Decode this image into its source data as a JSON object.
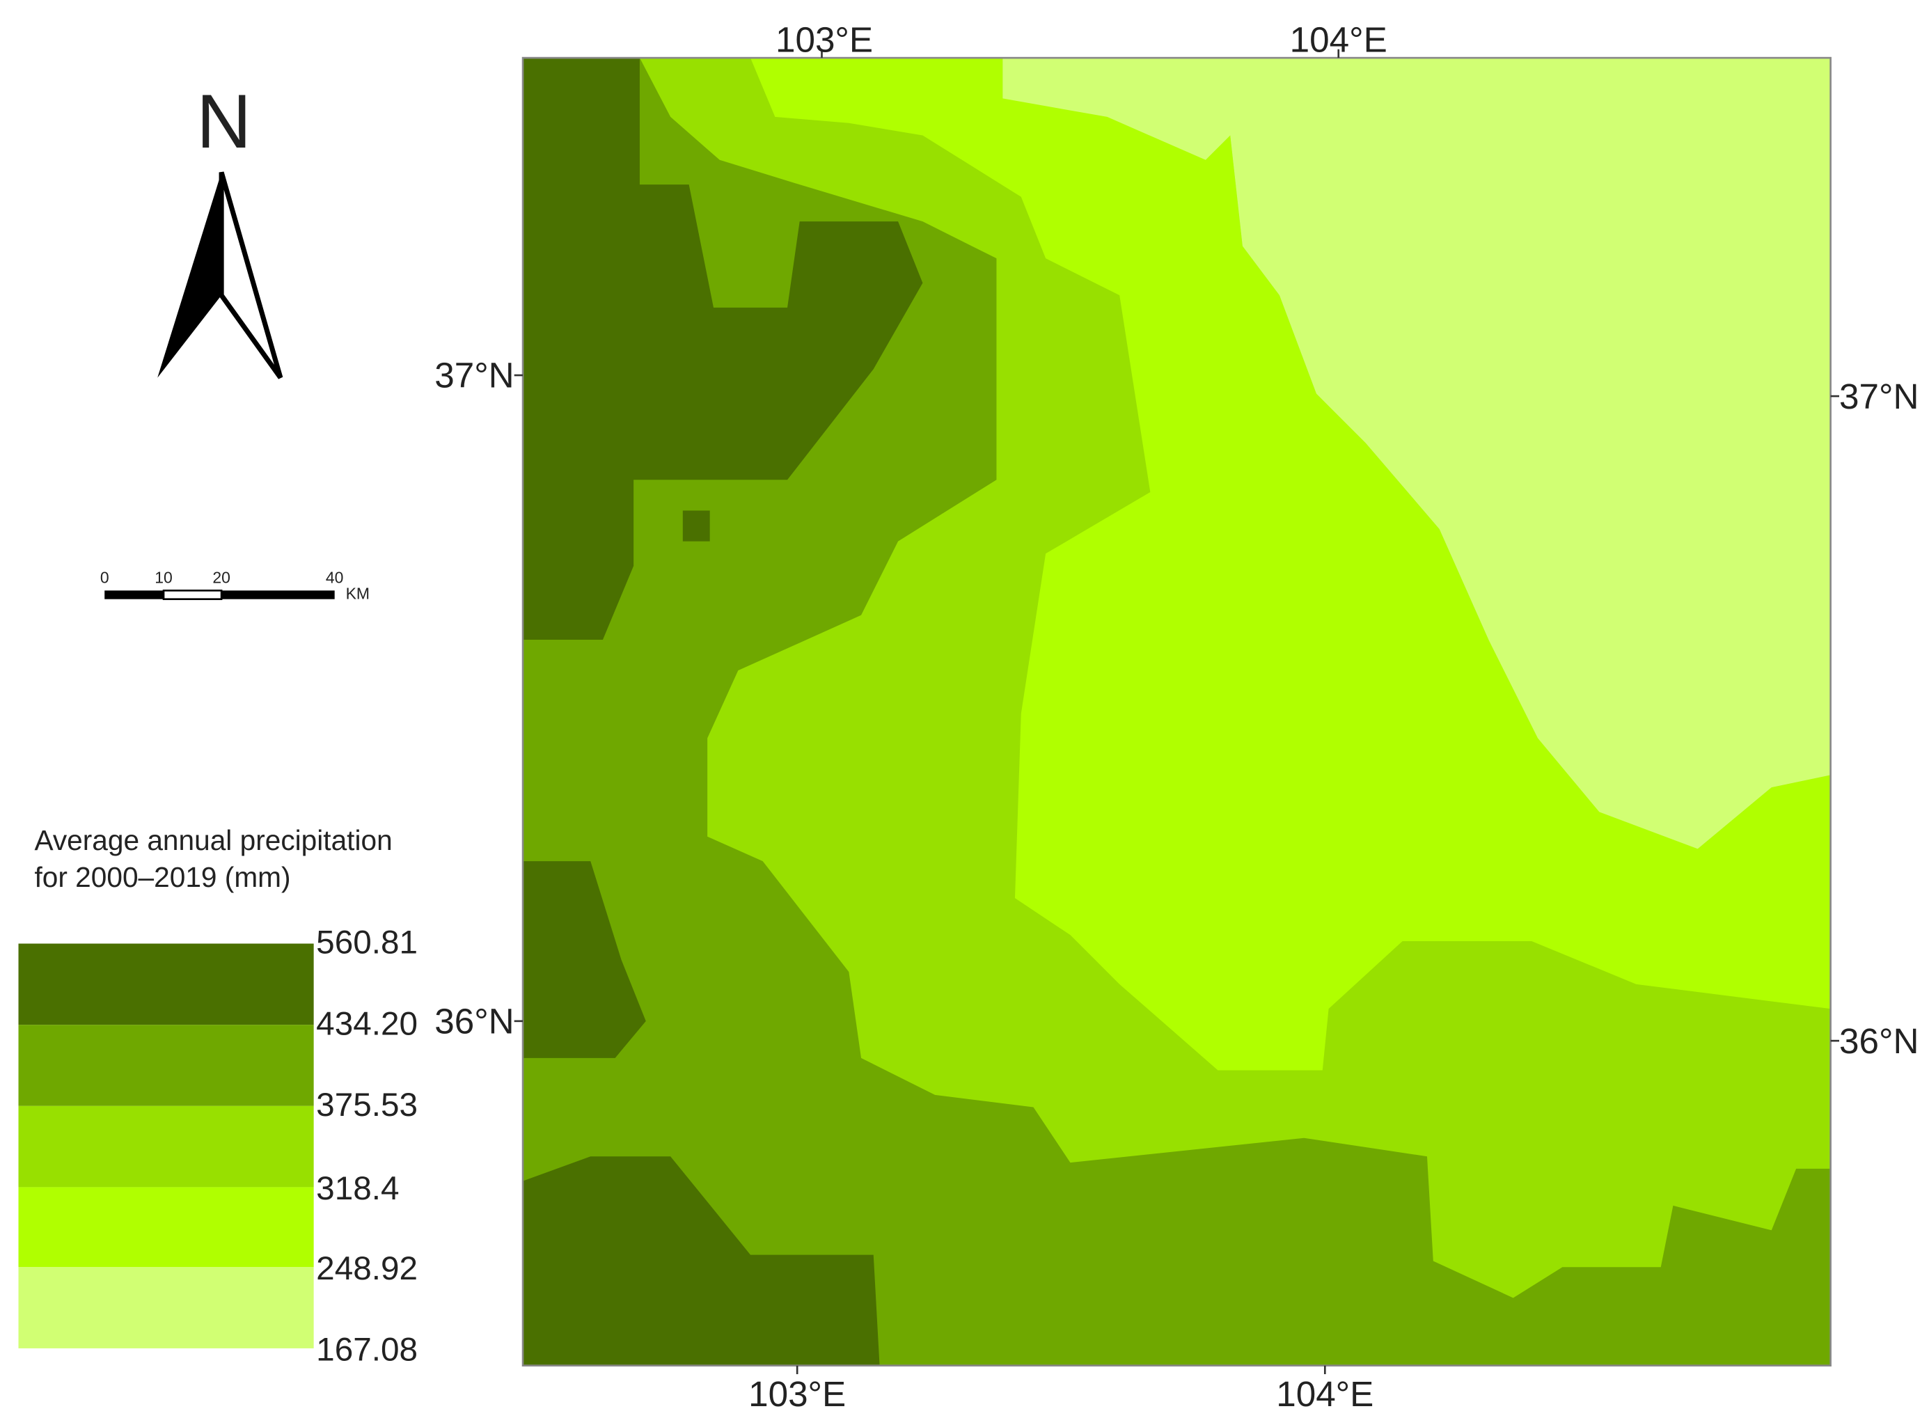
{
  "north_arrow": {
    "label": "N"
  },
  "scale_bar": {
    "ticks": [
      "0",
      "10",
      "20",
      "40"
    ],
    "unit": "KM"
  },
  "legend": {
    "title": [
      "Average annual precipitation",
      "for 2000–2019 (mm)"
    ],
    "breaks": [
      "560.81",
      "434.20",
      "375.53",
      "318.4",
      "248.92",
      "167.08"
    ]
  },
  "map": {
    "top_labels": [
      "103°E",
      "104°E"
    ],
    "bottom_labels": [
      "103°E",
      "104°E"
    ],
    "left_labels": [
      "37°N",
      "36°N"
    ],
    "right_labels": [
      "37°N",
      "36°N"
    ]
  }
}
